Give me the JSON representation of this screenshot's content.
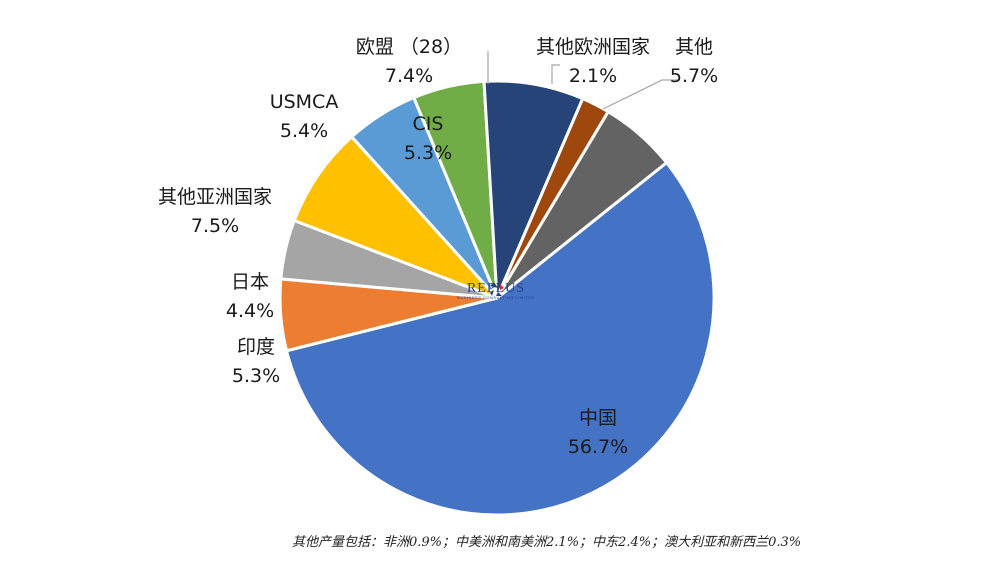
{
  "chart_data": {
    "type": "pie",
    "slices": [
      {
        "name": "中国",
        "value": 56.7,
        "label": "56.7%",
        "color": "#4472C4"
      },
      {
        "name": "印度",
        "value": 5.3,
        "label": "5.3%",
        "color": "#ED7D31"
      },
      {
        "name": "日本",
        "value": 4.4,
        "label": "4.4%",
        "color": "#A5A5A5"
      },
      {
        "name": "其他亚洲国家",
        "value": 7.5,
        "label": "7.5%",
        "color": "#FFC000"
      },
      {
        "name": "USMCA",
        "value": 5.4,
        "label": "5.4%",
        "color": "#5B9BD5"
      },
      {
        "name": "CIS",
        "value": 5.3,
        "label": "5.3%",
        "color": "#70AD47"
      },
      {
        "name": "欧盟 （28）",
        "value": 7.4,
        "label": "7.4%",
        "color": "#264478"
      },
      {
        "name": "其他欧洲国家",
        "value": 2.1,
        "label": "2.1%",
        "color": "#9E480E"
      },
      {
        "name": "其他",
        "value": 5.7,
        "label": "5.7%",
        "color": "#636363"
      }
    ]
  },
  "logo": {
    "wordmark": "REPLUS",
    "subtitle": "BUSINESS CONSULTING LIMITED"
  },
  "footnote": "其他产量包括：非洲0.9%；中美洲和南美洲2.1%；中东2.4%；澳大利亚和新西兰0.3%"
}
